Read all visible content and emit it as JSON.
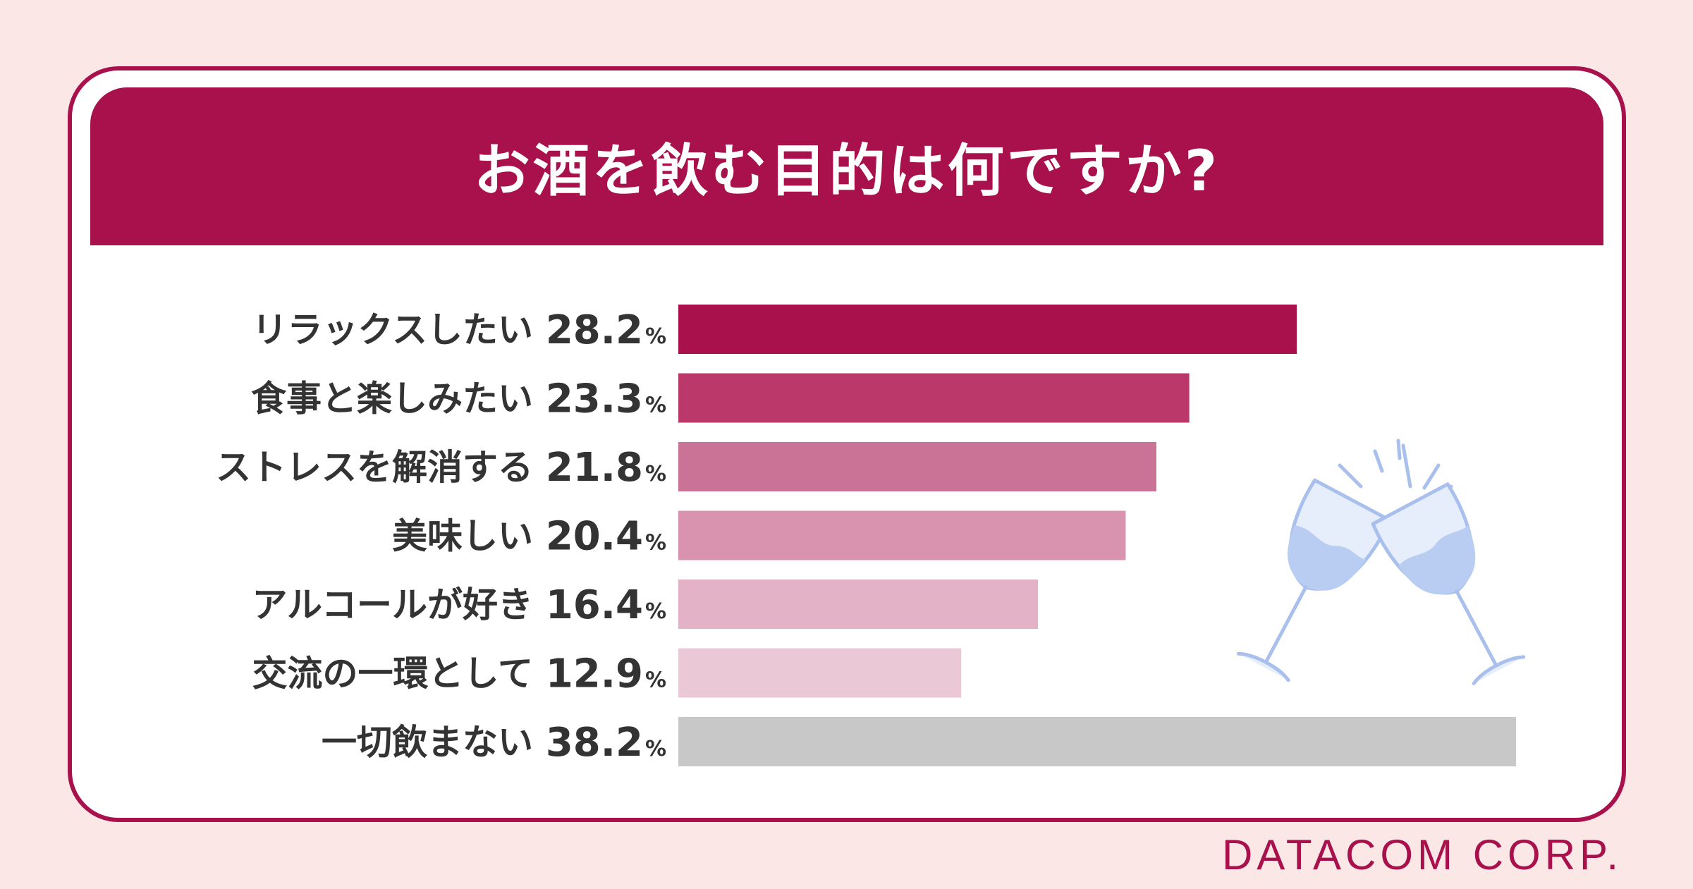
{
  "chart_data": {
    "type": "bar",
    "orientation": "horizontal",
    "title": "お酒を飲む目的は何ですか?",
    "categories": [
      "リラックスしたい",
      "食事と楽しみたい",
      "ストレスを解消する",
      "美味しい",
      "アルコールが好き",
      "交流の一環として",
      "一切飲まない"
    ],
    "values": [
      28.2,
      23.3,
      21.8,
      20.4,
      16.4,
      12.9,
      38.2
    ],
    "value_labels": [
      "28.2",
      "23.3",
      "21.8",
      "20.4",
      "16.4",
      "12.9",
      "38.2"
    ],
    "unit": "%",
    "colors": [
      "#a8114c",
      "#bb386b",
      "#cb7396",
      "#d993af",
      "#e3b2c6",
      "#ebc8d5",
      "#c8c8c8"
    ],
    "xlabel": "",
    "ylabel": "",
    "xlim": [
      0,
      38.2
    ],
    "grid": false,
    "legend": "none"
  },
  "brand": "DATACOM CORP.",
  "decoration_icon": "wine-glasses-toast-icon"
}
